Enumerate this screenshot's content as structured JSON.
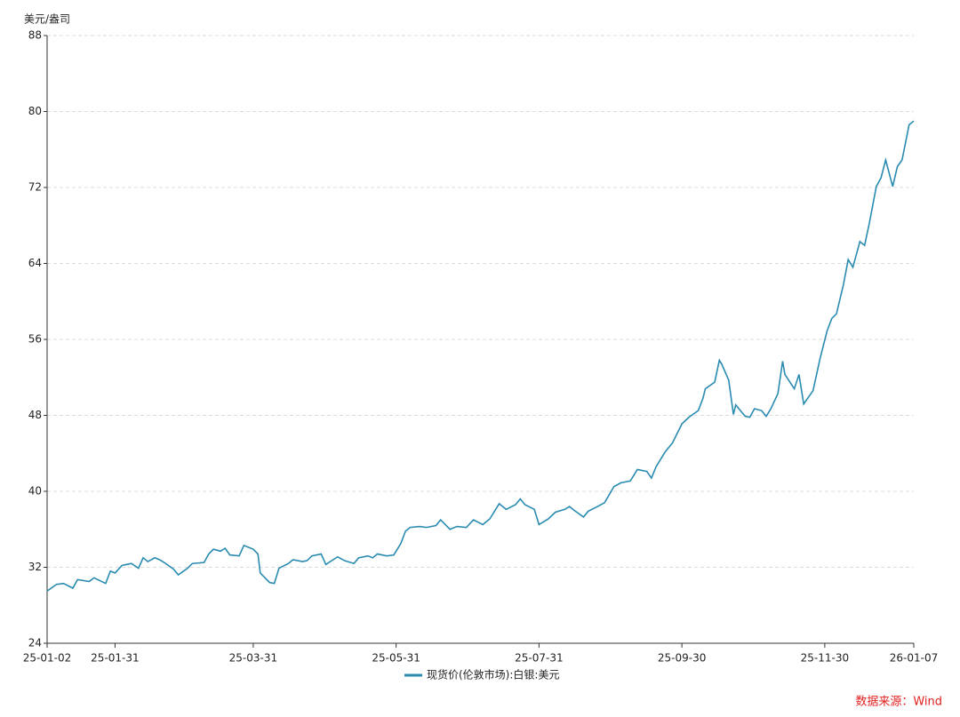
{
  "chart_data": {
    "type": "line",
    "y_label": "美元/盎司",
    "source": "数据来源：Wind",
    "x": [
      "25-01-02",
      "25-01-06",
      "25-01-09",
      "25-01-13",
      "25-01-15",
      "25-01-20",
      "25-01-22",
      "25-01-27",
      "25-01-29",
      "25-01-31",
      "25-02-03",
      "25-02-05",
      "25-02-07",
      "25-02-10",
      "25-02-12",
      "25-02-14",
      "25-02-17",
      "25-02-19",
      "25-02-21",
      "25-02-25",
      "25-02-27",
      "25-03-03",
      "25-03-05",
      "25-03-10",
      "25-03-12",
      "25-03-14",
      "25-03-17",
      "25-03-19",
      "25-03-21",
      "25-03-25",
      "25-03-27",
      "25-03-31",
      "25-04-02",
      "25-04-03",
      "25-04-07",
      "25-04-09",
      "25-04-11",
      "25-04-15",
      "25-04-17",
      "25-04-21",
      "25-04-23",
      "25-04-25",
      "25-04-29",
      "25-05-01",
      "25-05-06",
      "25-05-09",
      "25-05-13",
      "25-05-15",
      "25-05-19",
      "25-05-21",
      "25-05-23",
      "25-05-27",
      "25-05-30",
      "25-06-02",
      "25-06-04",
      "25-06-06",
      "25-06-10",
      "25-06-13",
      "25-06-17",
      "25-06-19",
      "25-06-23",
      "25-06-26",
      "25-06-30",
      "25-07-03",
      "25-07-07",
      "25-07-10",
      "25-07-14",
      "25-07-17",
      "25-07-21",
      "25-07-23",
      "25-07-25",
      "25-07-29",
      "25-07-31",
      "25-08-04",
      "25-08-07",
      "25-08-11",
      "25-08-13",
      "25-08-15",
      "25-08-19",
      "25-08-21",
      "25-08-25",
      "25-08-28",
      "25-09-01",
      "25-09-04",
      "25-09-08",
      "25-09-11",
      "25-09-15",
      "25-09-17",
      "25-09-19",
      "25-09-23",
      "25-09-26",
      "25-09-30",
      "25-10-03",
      "25-10-07",
      "25-10-09",
      "25-10-10",
      "25-10-14",
      "25-10-16",
      "25-10-17",
      "25-10-20",
      "25-10-22",
      "25-10-23",
      "25-10-27",
      "25-10-29",
      "25-10-31",
      "25-11-03",
      "25-11-05",
      "25-11-07",
      "25-11-10",
      "25-11-12",
      "25-11-13",
      "25-11-17",
      "25-11-19",
      "25-11-21",
      "25-11-25",
      "25-11-28",
      "25-12-01",
      "25-12-03",
      "25-12-05",
      "25-12-08",
      "25-12-10",
      "25-12-12",
      "25-12-15",
      "25-12-17",
      "25-12-19",
      "25-12-22",
      "25-12-24",
      "25-12-26",
      "25-12-29",
      "25-12-31",
      "26-01-02",
      "26-01-05",
      "26-01-07"
    ],
    "series": [
      {
        "name": "现货价(伦敦市场):白银:美元",
        "color": "#2a8bb0",
        "values": [
          29.5,
          30.2,
          30.3,
          29.8,
          30.7,
          30.5,
          30.9,
          30.3,
          31.6,
          31.4,
          32.2,
          32.3,
          32.4,
          31.9,
          33.0,
          32.6,
          33.0,
          32.8,
          32.5,
          31.8,
          31.2,
          31.9,
          32.4,
          32.5,
          33.4,
          33.9,
          33.7,
          34.0,
          33.3,
          33.2,
          34.3,
          33.9,
          33.4,
          31.4,
          30.4,
          30.3,
          31.9,
          32.4,
          32.8,
          32.6,
          32.7,
          33.2,
          33.4,
          32.3,
          33.1,
          32.7,
          32.4,
          33.0,
          33.2,
          33.0,
          33.4,
          33.2,
          33.3,
          34.5,
          35.8,
          36.2,
          36.3,
          36.2,
          36.4,
          37.0,
          36.0,
          36.3,
          36.2,
          37.0,
          36.5,
          37.1,
          38.7,
          38.1,
          38.6,
          39.2,
          38.6,
          38.1,
          36.5,
          37.1,
          37.8,
          38.1,
          38.4,
          38.0,
          37.3,
          37.9,
          38.4,
          38.8,
          40.5,
          40.9,
          41.1,
          42.3,
          42.1,
          41.4,
          42.6,
          44.2,
          45.1,
          47.1,
          47.8,
          48.5,
          49.8,
          50.8,
          51.5,
          53.8,
          53.4,
          51.7,
          48.1,
          49.1,
          47.9,
          47.8,
          48.7,
          48.5,
          47.9,
          48.7,
          50.3,
          53.7,
          52.3,
          50.8,
          52.3,
          49.2,
          50.6,
          54.0,
          56.9,
          58.2,
          58.7,
          61.8,
          64.4,
          63.6,
          66.3,
          65.9,
          68.2,
          72.1,
          73.0,
          74.9,
          72.1,
          74.2,
          74.9,
          78.6,
          79.0
        ]
      }
    ],
    "xlim": [
      "25-01-02",
      "26-01-07"
    ],
    "xticks": [
      "25-01-02",
      "25-01-31",
      "25-03-31",
      "25-05-31",
      "25-07-31",
      "25-09-30",
      "25-11-30",
      "26-01-07"
    ],
    "ylim": [
      24,
      88
    ],
    "yticks": [
      24,
      32,
      40,
      48,
      56,
      64,
      72,
      80,
      88
    ],
    "grid": true
  }
}
